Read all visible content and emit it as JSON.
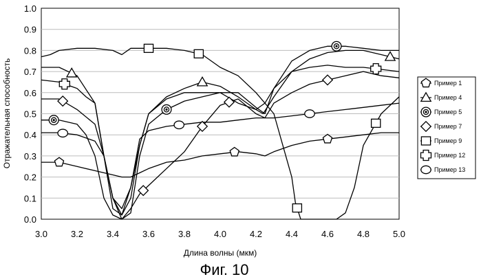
{
  "caption": "Фиг. 10",
  "chart_data": {
    "type": "line",
    "xlabel": "Длина волны (мкм)",
    "ylabel": "Отражательная способность",
    "xlim": [
      3.0,
      5.0
    ],
    "ylim": [
      0.0,
      1.0
    ],
    "xticks": [
      "3.0",
      "3.2",
      "3.4",
      "3.6",
      "3.8",
      "4.0",
      "4.2",
      "4.4",
      "4.6",
      "4.8",
      "5.0"
    ],
    "yticks": [
      "0.0",
      "0.1",
      "0.2",
      "0.3",
      "0.4",
      "0.5",
      "0.6",
      "0.7",
      "0.8",
      "0.9",
      "1.0"
    ],
    "grid": "horizontal",
    "legend_position": "right",
    "series": [
      {
        "name": "Пример 1",
        "marker": "pentagon",
        "x": [
          3.0,
          3.1,
          3.2,
          3.3,
          3.4,
          3.45,
          3.5,
          3.55,
          3.6,
          3.7,
          3.8,
          3.9,
          4.0,
          4.1,
          4.2,
          4.25,
          4.3,
          4.4,
          4.5,
          4.6,
          4.7,
          4.8,
          4.9,
          5.0
        ],
        "y": [
          0.27,
          0.27,
          0.25,
          0.23,
          0.21,
          0.2,
          0.2,
          0.22,
          0.24,
          0.27,
          0.28,
          0.3,
          0.31,
          0.32,
          0.31,
          0.3,
          0.32,
          0.35,
          0.37,
          0.38,
          0.39,
          0.4,
          0.41,
          0.41
        ]
      },
      {
        "name": "Пример 4",
        "marker": "triangle",
        "x": [
          3.0,
          3.1,
          3.2,
          3.3,
          3.35,
          3.4,
          3.45,
          3.5,
          3.55,
          3.6,
          3.7,
          3.8,
          3.9,
          4.0,
          4.1,
          4.2,
          4.24,
          4.3,
          4.4,
          4.5,
          4.6,
          4.7,
          4.8,
          4.9,
          5.0
        ],
        "y": [
          0.72,
          0.72,
          0.68,
          0.55,
          0.3,
          0.05,
          0.02,
          0.1,
          0.35,
          0.5,
          0.58,
          0.62,
          0.65,
          0.63,
          0.58,
          0.52,
          0.5,
          0.58,
          0.7,
          0.76,
          0.79,
          0.8,
          0.8,
          0.78,
          0.76
        ]
      },
      {
        "name": "Пример 5",
        "marker": "bullseye",
        "x": [
          3.0,
          3.1,
          3.2,
          3.25,
          3.3,
          3.35,
          3.4,
          3.45,
          3.5,
          3.55,
          3.6,
          3.7,
          3.8,
          3.9,
          4.0,
          4.1,
          4.2,
          4.25,
          4.3,
          4.4,
          4.5,
          4.6,
          4.7,
          4.8,
          4.9,
          5.0
        ],
        "y": [
          0.47,
          0.47,
          0.45,
          0.4,
          0.3,
          0.1,
          0.02,
          0.0,
          0.03,
          0.3,
          0.45,
          0.52,
          0.56,
          0.58,
          0.6,
          0.6,
          0.53,
          0.5,
          0.62,
          0.75,
          0.8,
          0.82,
          0.82,
          0.81,
          0.8,
          0.8
        ]
      },
      {
        "name": "Пример 7",
        "marker": "diamond",
        "x": [
          3.0,
          3.1,
          3.2,
          3.3,
          3.35,
          3.4,
          3.45,
          3.5,
          3.55,
          3.6,
          3.7,
          3.8,
          3.9,
          4.0,
          4.1,
          4.2,
          4.25,
          4.3,
          4.4,
          4.5,
          4.6,
          4.7,
          4.8,
          4.9,
          5.0
        ],
        "y": [
          0.57,
          0.57,
          0.52,
          0.45,
          0.3,
          0.1,
          0.0,
          0.05,
          0.12,
          0.16,
          0.24,
          0.32,
          0.44,
          0.54,
          0.57,
          0.5,
          0.48,
          0.55,
          0.6,
          0.64,
          0.66,
          0.68,
          0.7,
          0.68,
          0.67
        ]
      },
      {
        "name": "Пример 9",
        "marker": "square",
        "x": [
          3.0,
          3.05,
          3.1,
          3.2,
          3.3,
          3.4,
          3.45,
          3.5,
          3.6,
          3.7,
          3.8,
          3.9,
          4.0,
          4.1,
          4.2,
          4.3,
          4.35,
          4.4,
          4.42,
          4.45,
          4.5,
          4.6,
          4.65,
          4.7,
          4.75,
          4.8,
          4.9,
          5.0
        ],
        "y": [
          0.77,
          0.78,
          0.8,
          0.81,
          0.81,
          0.8,
          0.78,
          0.81,
          0.81,
          0.81,
          0.8,
          0.78,
          0.72,
          0.68,
          0.6,
          0.5,
          0.35,
          0.2,
          0.08,
          0.0,
          0.0,
          0.0,
          0.0,
          0.03,
          0.15,
          0.35,
          0.5,
          0.58
        ]
      },
      {
        "name": "Пример 12",
        "marker": "cross",
        "x": [
          3.0,
          3.1,
          3.2,
          3.25,
          3.3,
          3.35,
          3.4,
          3.45,
          3.5,
          3.55,
          3.6,
          3.7,
          3.8,
          3.9,
          4.0,
          4.1,
          4.2,
          4.25,
          4.3,
          4.4,
          4.5,
          4.6,
          4.7,
          4.8,
          4.9,
          5.0
        ],
        "y": [
          0.66,
          0.65,
          0.62,
          0.58,
          0.55,
          0.3,
          0.1,
          0.05,
          0.15,
          0.35,
          0.5,
          0.57,
          0.6,
          0.6,
          0.6,
          0.55,
          0.52,
          0.55,
          0.62,
          0.7,
          0.72,
          0.73,
          0.72,
          0.72,
          0.71,
          0.7
        ]
      },
      {
        "name": "Пример 13",
        "marker": "circle",
        "x": [
          3.0,
          3.1,
          3.2,
          3.3,
          3.35,
          3.4,
          3.45,
          3.5,
          3.55,
          3.6,
          3.7,
          3.8,
          3.9,
          4.0,
          4.1,
          4.2,
          4.3,
          4.4,
          4.5,
          4.6,
          4.7,
          4.8,
          4.9,
          5.0
        ],
        "y": [
          0.41,
          0.41,
          0.4,
          0.37,
          0.3,
          0.1,
          0.02,
          0.15,
          0.38,
          0.42,
          0.44,
          0.45,
          0.46,
          0.46,
          0.47,
          0.48,
          0.48,
          0.49,
          0.5,
          0.51,
          0.52,
          0.53,
          0.54,
          0.55
        ]
      }
    ]
  }
}
